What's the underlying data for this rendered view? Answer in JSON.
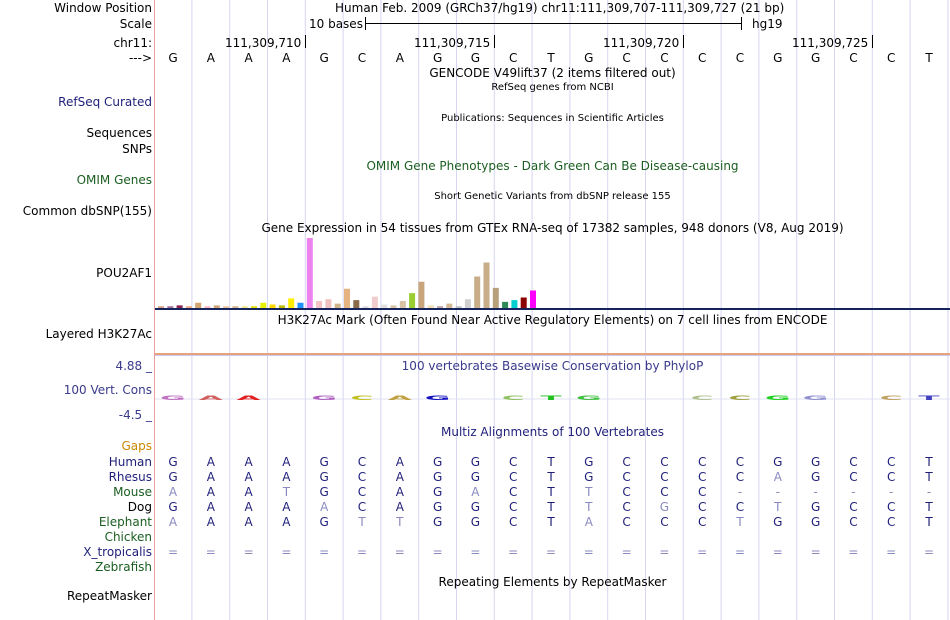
{
  "position": {
    "label": "Window Position",
    "text": "Human Feb. 2009 (GRCh37/hg19)    chr11:111,309,707-111,309,727 (21 bp)"
  },
  "scale": {
    "label": "Scale",
    "bases": "10 bases",
    "assembly": "hg19"
  },
  "ruler": {
    "chrom_label": "chr11:",
    "arrow_label": "--->",
    "ticks": [
      {
        "label": "111,309,710",
        "index": 3
      },
      {
        "label": "111,309,715",
        "index": 8
      },
      {
        "label": "111,309,720",
        "index": 13
      },
      {
        "label": "111,309,725",
        "index": 18
      }
    ]
  },
  "sequence": [
    "G",
    "A",
    "A",
    "A",
    "G",
    "C",
    "A",
    "G",
    "G",
    "C",
    "T",
    "G",
    "C",
    "C",
    "C",
    "C",
    "G",
    "G",
    "C",
    "C",
    "T"
  ],
  "tracks": {
    "gencode": {
      "title": "GENCODE V49lift37 (2 items filtered out)"
    },
    "refseq": {
      "label": "RefSeq Curated",
      "title": "RefSeq genes from NCBI"
    },
    "publications": {
      "label": "Sequences",
      "title": "Publications: Sequences in Scientific Articles"
    },
    "snps": {
      "label": "SNPs"
    },
    "omim_title": "OMIM Gene Phenotypes - Dark Green Can Be Disease-causing",
    "omim": {
      "label": "OMIM Genes"
    },
    "dbsnp": {
      "label": "Common dbSNP(155)",
      "title": "Short Genetic Variants from dbSNP release 155"
    },
    "gtex": {
      "label": "POU2AF1",
      "title": "Gene Expression in 54 tissues from GTEx RNA-seq of 17382 samples, 948 donors (V8, Aug 2019)"
    },
    "h3k27ac": {
      "label": "Layered H3K27Ac",
      "title": "H3K27Ac Mark (Often Found Near Active Regulatory Elements) on 7 cell lines from ENCODE"
    },
    "phylop": {
      "label": "100 Vert. Cons",
      "title": "100 vertebrates Basewise Conservation by PhyloP",
      "max": "4.88 _",
      "min": "-4.5 _"
    },
    "multiz": {
      "title": "Multiz Alignments of 100 Vertebrates",
      "gaps_label": "Gaps"
    },
    "repeatmasker": {
      "label": "RepeatMasker",
      "title": "Repeating Elements by RepeatMasker"
    }
  },
  "colors": {
    "navy": "#1f1f7a",
    "dark_green": "#1b5e20",
    "gaps": "#cc8800",
    "grid": "#d6d6f2",
    "faded": "#8a8abf"
  },
  "gtex_bars": [
    {
      "value": 2,
      "color": "#d6a07d"
    },
    {
      "value": 2,
      "color": "#a06f9c"
    },
    {
      "value": 3,
      "color": "#8b2252"
    },
    {
      "value": 2,
      "color": "#f3a683"
    },
    {
      "value": 6,
      "color": "#d4a373"
    },
    {
      "value": 2,
      "color": "#ffb6c1"
    },
    {
      "value": 3,
      "color": "#d2a679"
    },
    {
      "value": 2,
      "color": "#e8c39e"
    },
    {
      "value": 2,
      "color": "#d2b48c"
    },
    {
      "value": 2,
      "color": "#f0e68c"
    },
    {
      "value": 2,
      "color": "#e0e000"
    },
    {
      "value": 6,
      "color": "#e6f000"
    },
    {
      "value": 4,
      "color": "#ffd700"
    },
    {
      "value": 3,
      "color": "#bfbf00"
    },
    {
      "value": 11,
      "color": "#ffee00"
    },
    {
      "value": 6,
      "color": "#1e90ff"
    },
    {
      "value": 80,
      "color": "#ee82ee"
    },
    {
      "value": 8,
      "color": "#f4c2c2"
    },
    {
      "value": 10,
      "color": "#eec0c0"
    },
    {
      "value": 5,
      "color": "#d2b48c"
    },
    {
      "value": 22,
      "color": "#e5b380"
    },
    {
      "value": 9,
      "color": "#8b6b4a"
    },
    {
      "value": 2,
      "color": "#dcdcdc"
    },
    {
      "value": 13,
      "color": "#f0cccc"
    },
    {
      "value": 4,
      "color": "#e0e0e0"
    },
    {
      "value": 3,
      "color": "#d9c3a5"
    },
    {
      "value": 8,
      "color": "#d9c3a5"
    },
    {
      "value": 17,
      "color": "#9acd32"
    },
    {
      "value": 30,
      "color": "#c8a47a"
    },
    {
      "value": 3,
      "color": "#f5deb3"
    },
    {
      "value": 2,
      "color": "#c0a0a0"
    },
    {
      "value": 5,
      "color": "#d4b896"
    },
    {
      "value": 2,
      "color": "#c0c0c0"
    },
    {
      "value": 10,
      "color": "#d0d0d0"
    },
    {
      "value": 36,
      "color": "#c8ad88"
    },
    {
      "value": 52,
      "color": "#c8ad88"
    },
    {
      "value": 23,
      "color": "#b8a07a"
    },
    {
      "value": 7,
      "color": "#2e8b57"
    },
    {
      "value": 9,
      "color": "#00ced1"
    },
    {
      "value": 12,
      "color": "#8b0000"
    },
    {
      "value": 20,
      "color": "#ff00ff"
    }
  ],
  "phylop_letters": [
    {
      "index": 0,
      "letter": "G",
      "color": "#c070c0"
    },
    {
      "index": 1,
      "letter": "A",
      "color": "#d06060"
    },
    {
      "index": 2,
      "letter": "A",
      "color": "#e02020"
    },
    {
      "index": 4,
      "letter": "G",
      "color": "#b060c0"
    },
    {
      "index": 5,
      "letter": "C",
      "color": "#c0c020"
    },
    {
      "index": 6,
      "letter": "A",
      "color": "#c0a040"
    },
    {
      "index": 7,
      "letter": "G",
      "color": "#1010c0"
    },
    {
      "index": 9,
      "letter": "C",
      "color": "#90c060"
    },
    {
      "index": 10,
      "letter": "T",
      "color": "#20c020"
    },
    {
      "index": 11,
      "letter": "G",
      "color": "#40c040"
    },
    {
      "index": 14,
      "letter": "C",
      "color": "#b0c090"
    },
    {
      "index": 15,
      "letter": "C",
      "color": "#a0a040"
    },
    {
      "index": 16,
      "letter": "G",
      "color": "#20d020"
    },
    {
      "index": 17,
      "letter": "G",
      "color": "#9090d0"
    },
    {
      "index": 19,
      "letter": "C",
      "color": "#c0a060"
    },
    {
      "index": 20,
      "letter": "T",
      "color": "#4040c0"
    }
  ],
  "alignments": [
    {
      "species": "Human",
      "color": "#1f1f7a",
      "bases": [
        "G",
        "A",
        "A",
        "A",
        "G",
        "C",
        "A",
        "G",
        "G",
        "C",
        "T",
        "G",
        "C",
        "C",
        "C",
        "C",
        "G",
        "G",
        "C",
        "C",
        "T"
      ],
      "faded": []
    },
    {
      "species": "Rhesus",
      "color": "#1f1f7a",
      "bases": [
        "G",
        "A",
        "A",
        "A",
        "G",
        "C",
        "A",
        "G",
        "G",
        "C",
        "T",
        "G",
        "C",
        "C",
        "C",
        "C",
        "A",
        "G",
        "C",
        "C",
        "T"
      ],
      "faded": [
        16
      ]
    },
    {
      "species": "Mouse",
      "color": "#1b5e20",
      "bases": [
        "A",
        "A",
        "A",
        "T",
        "G",
        "C",
        "A",
        "G",
        "A",
        "C",
        "T",
        "T",
        "C",
        "C",
        "C",
        "-",
        "-",
        "-",
        "-",
        "-",
        "-"
      ],
      "faded": [
        0,
        3,
        8,
        11,
        15,
        16,
        17,
        18,
        19,
        20
      ]
    },
    {
      "species": "Dog",
      "color": "#000000",
      "bases": [
        "G",
        "A",
        "A",
        "A",
        "A",
        "C",
        "A",
        "G",
        "G",
        "C",
        "T",
        "T",
        "C",
        "G",
        "C",
        "C",
        "T",
        "G",
        "C",
        "C",
        "T"
      ],
      "faded": [
        4,
        11,
        13,
        16
      ]
    },
    {
      "species": "Elephant",
      "color": "#1b5e20",
      "bases": [
        "A",
        "A",
        "A",
        "A",
        "G",
        "T",
        "T",
        "G",
        "G",
        "C",
        "T",
        "A",
        "C",
        "C",
        "C",
        "T",
        "G",
        "G",
        "C",
        "C",
        "T"
      ],
      "faded": [
        0,
        5,
        6,
        11,
        15
      ]
    },
    {
      "species": "Chicken",
      "color": "#1b5e20",
      "bases": [],
      "faded": []
    },
    {
      "species": "X_tropicalis",
      "color": "#1f1f7a",
      "bases": [
        "=",
        "=",
        "=",
        "=",
        "=",
        "=",
        "=",
        "=",
        "=",
        "=",
        "=",
        "=",
        "=",
        "=",
        "=",
        "=",
        "=",
        "=",
        "=",
        "=",
        "="
      ],
      "faded": [
        0,
        1,
        2,
        3,
        4,
        5,
        6,
        7,
        8,
        9,
        10,
        11,
        12,
        13,
        14,
        15,
        16,
        17,
        18,
        19,
        20
      ]
    },
    {
      "species": "Zebrafish",
      "color": "#1b5e20",
      "bases": [],
      "faded": []
    }
  ]
}
